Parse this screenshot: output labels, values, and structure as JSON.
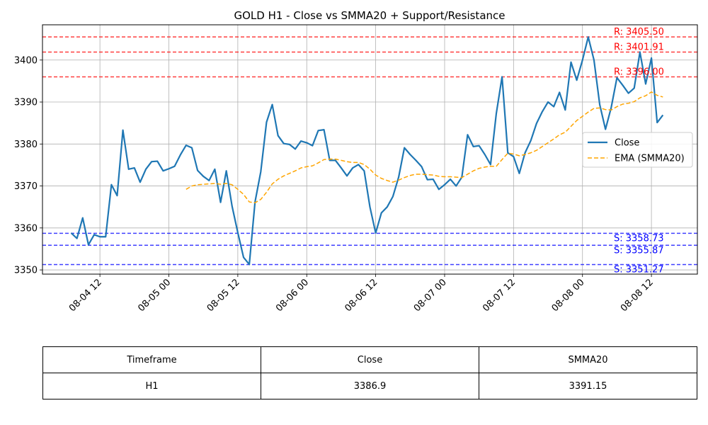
{
  "chart_data": {
    "type": "line",
    "title": "GOLD H1 - Close vs SMMA20 + Support/Resistance",
    "xlabel": "",
    "ylabel": "",
    "ylim": [
      3349,
      3408.4
    ],
    "xlim": [
      "2025-08-04 02:00",
      "2025-08-08 20:00"
    ],
    "x_ticks": [
      "08-04 12",
      "08-05 00",
      "08-05 12",
      "08-06 00",
      "08-06 12",
      "08-07 00",
      "08-07 12",
      "08-08 00",
      "08-08 12"
    ],
    "y_ticks": [
      3350,
      3360,
      3370,
      3380,
      3390,
      3400
    ],
    "grid": true,
    "legend_position": "center-right",
    "x": [
      "2025-08-04 07:00",
      "2025-08-04 08:00",
      "2025-08-04 09:00",
      "2025-08-04 10:00",
      "2025-08-04 11:00",
      "2025-08-04 12:00",
      "2025-08-04 13:00",
      "2025-08-04 14:00",
      "2025-08-04 15:00",
      "2025-08-04 16:00",
      "2025-08-04 17:00",
      "2025-08-04 18:00",
      "2025-08-04 19:00",
      "2025-08-04 20:00",
      "2025-08-04 21:00",
      "2025-08-04 22:00",
      "2025-08-04 23:00",
      "2025-08-05 00:00",
      "2025-08-05 01:00",
      "2025-08-05 02:00",
      "2025-08-05 03:00",
      "2025-08-05 04:00",
      "2025-08-05 05:00",
      "2025-08-05 06:00",
      "2025-08-05 07:00",
      "2025-08-05 08:00",
      "2025-08-05 09:00",
      "2025-08-05 10:00",
      "2025-08-05 11:00",
      "2025-08-05 12:00",
      "2025-08-05 13:00",
      "2025-08-05 14:00",
      "2025-08-05 15:00",
      "2025-08-05 16:00",
      "2025-08-05 17:00",
      "2025-08-05 18:00",
      "2025-08-05 19:00",
      "2025-08-05 20:00",
      "2025-08-05 21:00",
      "2025-08-05 22:00",
      "2025-08-05 23:00",
      "2025-08-06 00:00",
      "2025-08-06 01:00",
      "2025-08-06 02:00",
      "2025-08-06 03:00",
      "2025-08-06 04:00",
      "2025-08-06 05:00",
      "2025-08-06 06:00",
      "2025-08-06 07:00",
      "2025-08-06 08:00",
      "2025-08-06 09:00",
      "2025-08-06 10:00",
      "2025-08-06 11:00",
      "2025-08-06 12:00",
      "2025-08-06 13:00",
      "2025-08-06 14:00",
      "2025-08-06 15:00",
      "2025-08-06 16:00",
      "2025-08-06 17:00",
      "2025-08-06 18:00",
      "2025-08-06 19:00",
      "2025-08-06 20:00",
      "2025-08-06 21:00",
      "2025-08-06 22:00",
      "2025-08-06 23:00",
      "2025-08-07 00:00",
      "2025-08-07 01:00",
      "2025-08-07 02:00",
      "2025-08-07 03:00",
      "2025-08-07 04:00",
      "2025-08-07 05:00",
      "2025-08-07 06:00",
      "2025-08-07 07:00",
      "2025-08-07 08:00",
      "2025-08-07 09:00",
      "2025-08-07 10:00",
      "2025-08-07 11:00",
      "2025-08-07 12:00",
      "2025-08-07 13:00",
      "2025-08-07 14:00",
      "2025-08-07 15:00",
      "2025-08-07 16:00",
      "2025-08-07 17:00",
      "2025-08-07 18:00",
      "2025-08-07 19:00",
      "2025-08-07 20:00",
      "2025-08-07 21:00",
      "2025-08-07 22:00",
      "2025-08-07 23:00",
      "2025-08-08 00:00",
      "2025-08-08 01:00",
      "2025-08-08 02:00",
      "2025-08-08 03:00",
      "2025-08-08 04:00",
      "2025-08-08 05:00",
      "2025-08-08 06:00",
      "2025-08-08 07:00",
      "2025-08-08 08:00",
      "2025-08-08 09:00",
      "2025-08-08 10:00",
      "2025-08-08 11:00",
      "2025-08-08 12:00",
      "2025-08-08 13:00",
      "2025-08-08 14:00"
    ],
    "series": [
      {
        "name": "Close",
        "color": "#1f77b4",
        "style": "solid",
        "values": [
          3358.8,
          3357.5,
          3362.4,
          3356.0,
          3358.4,
          3357.9,
          3357.9,
          3370.3,
          3367.7,
          3383.3,
          3374.0,
          3374.3,
          3370.9,
          3374.0,
          3375.8,
          3375.9,
          3373.6,
          3374.1,
          3374.7,
          3377.4,
          3379.7,
          3379.1,
          3373.7,
          3372.3,
          3371.3,
          3374.0,
          3366.1,
          3373.6,
          3365.2,
          3358.9,
          3353.0,
          3351.3,
          3366.2,
          3373.4,
          3385.2,
          3389.4,
          3382.0,
          3380.1,
          3379.9,
          3378.8,
          3380.7,
          3380.3,
          3379.6,
          3383.2,
          3383.4,
          3376.1,
          3376.1,
          3374.3,
          3372.4,
          3374.3,
          3375.1,
          3373.6,
          3365.0,
          3358.8,
          3363.6,
          3365.0,
          3367.5,
          3372.1,
          3379.1,
          3377.5,
          3376.1,
          3374.6,
          3371.5,
          3371.6,
          3369.2,
          3370.3,
          3371.6,
          3370.0,
          3372.1,
          3382.2,
          3379.4,
          3379.6,
          3377.5,
          3375.1,
          3387.3,
          3396.0,
          3377.9,
          3377.0,
          3373.0,
          3377.9,
          3380.8,
          3384.9,
          3387.7,
          3390.0,
          3388.9,
          3392.3,
          3388.1,
          3399.5,
          3395.2,
          3400.0,
          3405.5,
          3400.0,
          3389.4,
          3383.5,
          3388.7,
          3395.8,
          3394.0,
          3392.1,
          3393.3,
          3401.9,
          3394.3,
          3400.5,
          3385.1,
          3386.9
        ]
      },
      {
        "name": "EMA (SMMA20)",
        "color": "#ffa500",
        "style": "dashed",
        "values": [
          null,
          null,
          null,
          null,
          null,
          null,
          null,
          null,
          null,
          null,
          null,
          null,
          null,
          null,
          null,
          null,
          null,
          null,
          null,
          null,
          3369.2,
          3370.0,
          3370.3,
          3370.4,
          3370.5,
          3370.6,
          3370.4,
          3370.6,
          3370.3,
          3369.2,
          3368.0,
          3366.2,
          3366.0,
          3366.8,
          3368.5,
          3370.5,
          3371.6,
          3372.4,
          3373.0,
          3373.6,
          3374.3,
          3374.6,
          3374.8,
          3375.5,
          3376.3,
          3376.4,
          3376.4,
          3376.1,
          3375.8,
          3375.6,
          3375.6,
          3375.1,
          3374.0,
          3372.6,
          3371.8,
          3371.3,
          3370.9,
          3371.4,
          3372.0,
          3372.5,
          3372.8,
          3372.8,
          3372.7,
          3372.6,
          3372.3,
          3372.2,
          3372.2,
          3372.1,
          3372.0,
          3372.8,
          3373.6,
          3374.2,
          3374.5,
          3374.7,
          3374.7,
          3376.3,
          3377.8,
          3377.6,
          3377.2,
          3377.5,
          3377.9,
          3378.5,
          3379.4,
          3380.3,
          3381.2,
          3382.2,
          3382.8,
          3384.2,
          3385.6,
          3386.6,
          3387.6,
          3388.5,
          3388.6,
          3388.2,
          3388.1,
          3388.9,
          3389.5,
          3389.7,
          3390.1,
          3391.0,
          3391.5,
          3392.4,
          3391.6,
          3391.2
        ]
      }
    ],
    "resistance_levels": [
      3405.5,
      3401.91,
      3396.0
    ],
    "support_levels": [
      3358.73,
      3355.87,
      3351.27
    ],
    "resistance_labels": [
      "R: 3405.50",
      "R: 3401.91",
      "R: 3396.00"
    ],
    "support_labels": [
      "S: 3358.73",
      "S: 3355.87",
      "S: 3351.27"
    ],
    "resistance_color": "#ff0000",
    "support_color": "#0000ff"
  },
  "table": {
    "headers": [
      "Timeframe",
      "Close",
      "SMMA20"
    ],
    "row": [
      "H1",
      "3386.9",
      "3391.15"
    ]
  }
}
